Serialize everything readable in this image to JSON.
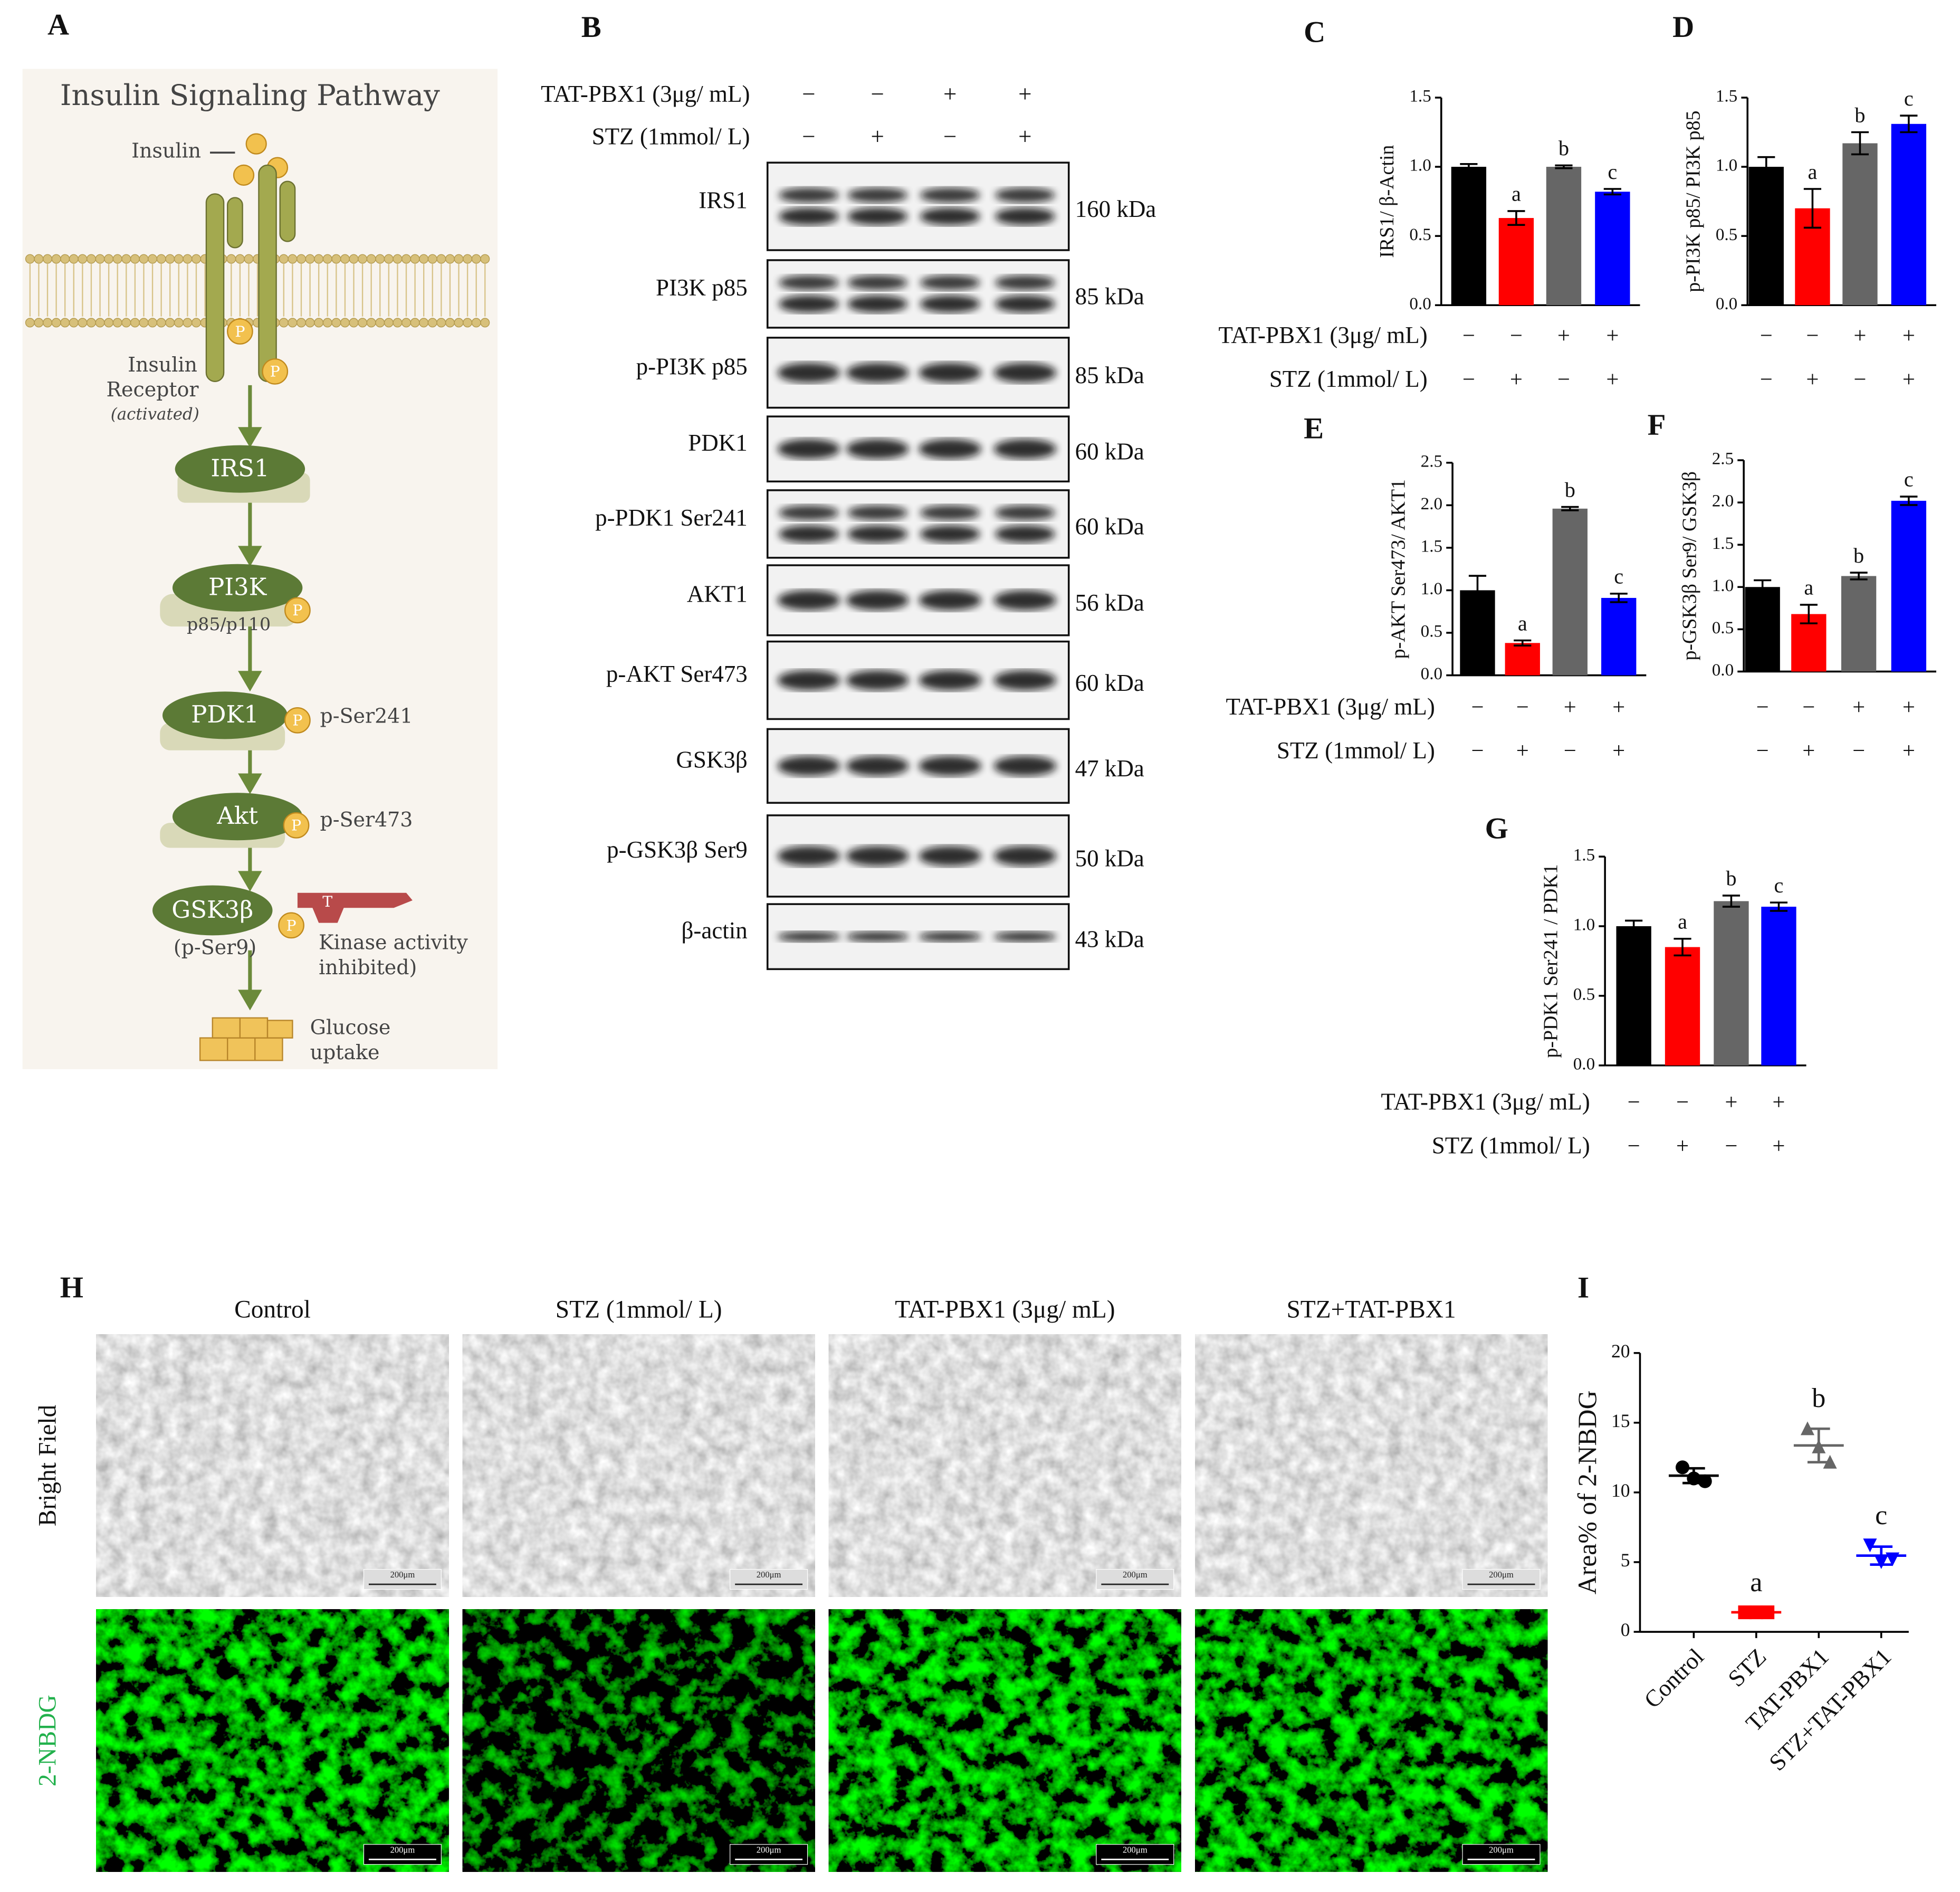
{
  "panel_labels": [
    "A",
    "B",
    "C",
    "D",
    "E",
    "F",
    "G",
    "H",
    "I"
  ],
  "pathway": {
    "title": "Insulin Signaling Pathway",
    "insulin": "Insulin",
    "receptor": "Insulin",
    "receptor2": "Receptor",
    "activated": "(activated)",
    "irs1": "IRS1",
    "pi3k": "PI3K",
    "pi3k_sub": "p85/p110",
    "pdk1": "PDK1",
    "pdk1_site": "p-Ser241",
    "akt": "Akt",
    "akt_site": "p-Ser473",
    "gsk": "GSK3β",
    "gsk_site": "(p-Ser9)",
    "inhib1": "Kinase activity",
    "inhib2": "inhibited)",
    "glucose1": "Glucose",
    "glucose2": "uptake",
    "phospho": "P",
    "t": "T"
  },
  "blot": {
    "conditions": [
      {
        "name": "TAT-PBX1 (3μg/ mL)",
        "signs": [
          "−",
          "−",
          "+",
          "+"
        ]
      },
      {
        "name": "STZ (1mmol/ L)",
        "signs": [
          "−",
          "+",
          "−",
          "+"
        ]
      }
    ],
    "rows": [
      {
        "name": "IRS1",
        "kda": "160 kDa"
      },
      {
        "name": "PI3K p85",
        "kda": "85 kDa"
      },
      {
        "name": "p-PI3K p85",
        "kda": "85 kDa"
      },
      {
        "name": "PDK1",
        "kda": "60 kDa"
      },
      {
        "name": "p-PDK1 Ser241",
        "kda": "60 kDa"
      },
      {
        "name": "AKT1",
        "kda": "56 kDa"
      },
      {
        "name": "p-AKT Ser473",
        "kda": "60 kDa"
      },
      {
        "name": "GSK3β",
        "kda": "47 kDa"
      },
      {
        "name": "p-GSK3β Ser9",
        "kda": "50 kDa"
      },
      {
        "name": "β-actin",
        "kda": "43 kDa"
      }
    ]
  },
  "imaging": {
    "columns": [
      "Control",
      "STZ (1mmol/ L)",
      "TAT-PBX1 (3μg/ mL)",
      "STZ+TAT-PBX1"
    ],
    "rows": [
      "Bright Field",
      "2-NBDG"
    ],
    "row_colors": [
      "#111111",
      "#22b14c"
    ],
    "scale_bar": "200μm"
  },
  "chart_data": [
    {
      "type": "bar",
      "ylabel": "IRS1/ β-Actin",
      "ylim": [
        0,
        1.5
      ],
      "yticks": [
        {
          "value": 0,
          "label": "0.0"
        },
        0.5,
        {
          "value": 1,
          "label": "1.0"
        },
        1.5
      ],
      "values": [
        1.0,
        0.63,
        1.0,
        0.82
      ],
      "errors": [
        0.02,
        0.05,
        0.01,
        0.02
      ],
      "colors": [
        "#000000",
        "#ff0000",
        "#666666",
        "#0000ff"
      ],
      "annotations": [
        null,
        "a",
        "b",
        "c"
      ],
      "conditions": [
        {
          "name": "TAT-PBX1 (3μg/ mL)",
          "signs": [
            "−",
            "−",
            "+",
            "+"
          ]
        },
        {
          "name": "STZ (1mmol/ L)",
          "signs": [
            "−",
            "+",
            "−",
            "+"
          ]
        }
      ]
    },
    {
      "type": "bar",
      "ylabel": "p-PI3K p85/ PI3K p85",
      "ylim": [
        0,
        1.5
      ],
      "yticks": [
        {
          "value": 0,
          "label": "0.0"
        },
        0.5,
        {
          "value": 1,
          "label": "1.0"
        },
        1.5
      ],
      "values": [
        1.0,
        0.7,
        1.17,
        1.31
      ],
      "errors": [
        0.07,
        0.14,
        0.08,
        0.06
      ],
      "colors": [
        "#000000",
        "#ff0000",
        "#666666",
        "#0000ff"
      ],
      "annotations": [
        null,
        "a",
        "b",
        "c"
      ],
      "conditions": [
        {
          "signs": [
            "−",
            "−",
            "+",
            "+"
          ]
        },
        {
          "signs": [
            "−",
            "+",
            "−",
            "+"
          ]
        }
      ]
    },
    {
      "type": "bar",
      "ylabel": "p-AKT Ser473/ AKT1",
      "ylim": [
        0,
        2.5
      ],
      "yticks": [
        {
          "value": 0,
          "label": "0.0"
        },
        0.5,
        {
          "value": 1,
          "label": "1.0"
        },
        1.5,
        {
          "value": 2,
          "label": "2.0"
        },
        2.5
      ],
      "values": [
        1.0,
        0.38,
        1.96,
        0.91
      ],
      "errors": [
        0.17,
        0.03,
        0.02,
        0.05
      ],
      "colors": [
        "#000000",
        "#ff0000",
        "#666666",
        "#0000ff"
      ],
      "annotations": [
        null,
        "a",
        "b",
        "c"
      ],
      "conditions": [
        {
          "name": "TAT-PBX1 (3μg/ mL)",
          "signs": [
            "−",
            "−",
            "+",
            "+"
          ]
        },
        {
          "name": "STZ (1mmol/ L)",
          "signs": [
            "−",
            "+",
            "−",
            "+"
          ]
        }
      ]
    },
    {
      "type": "bar",
      "ylabel": "p-GSK3β Ser9/ GSK3β",
      "ylim": [
        0,
        2.5
      ],
      "yticks": [
        {
          "value": 0,
          "label": "0.0"
        },
        0.5,
        {
          "value": 1,
          "label": "1.0"
        },
        1.5,
        {
          "value": 2,
          "label": "2.0"
        },
        2.5
      ],
      "values": [
        1.0,
        0.68,
        1.13,
        2.02
      ],
      "errors": [
        0.08,
        0.11,
        0.04,
        0.05
      ],
      "colors": [
        "#000000",
        "#ff0000",
        "#666666",
        "#0000ff"
      ],
      "annotations": [
        null,
        "a",
        "b",
        "c"
      ],
      "conditions": [
        {
          "signs": [
            "−",
            "−",
            "+",
            "+"
          ]
        },
        {
          "signs": [
            "−",
            "+",
            "−",
            "+"
          ]
        }
      ]
    },
    {
      "type": "bar",
      "ylabel": "p-PDK1 Ser241 / PDK1",
      "ylim": [
        0,
        1.5
      ],
      "yticks": [
        {
          "value": 0,
          "label": "0.0"
        },
        0.5,
        {
          "value": 1,
          "label": "1.0"
        },
        1.5
      ],
      "values": [
        1.0,
        0.85,
        1.18,
        1.14
      ],
      "errors": [
        0.04,
        0.06,
        0.04,
        0.03
      ],
      "colors": [
        "#000000",
        "#ff0000",
        "#666666",
        "#0000ff"
      ],
      "annotations": [
        null,
        "a",
        "b",
        "c"
      ],
      "conditions": [
        {
          "name": "TAT-PBX1 (3μg/ mL)",
          "signs": [
            "−",
            "−",
            "+",
            "+"
          ]
        },
        {
          "name": "STZ (1mmol/ L)",
          "signs": [
            "−",
            "+",
            "−",
            "+"
          ]
        }
      ]
    },
    {
      "type": "scatter",
      "ylabel": "Area% of 2-NBDG",
      "ylim": [
        0,
        20
      ],
      "yticks": [
        0,
        5,
        10,
        15,
        20
      ],
      "categories": [
        "Control",
        "STZ",
        "TAT-PBX1",
        "STZ+TAT-PBX1"
      ],
      "annotations": [
        null,
        "a",
        "b",
        "c"
      ],
      "groups": [
        {
          "color": "#000000",
          "marker": "circle",
          "values": [
            11.8,
            11.0,
            10.8
          ]
        },
        {
          "color": "#ff0000",
          "marker": "square",
          "values": [
            1.4,
            1.4,
            1.4
          ]
        },
        {
          "color": "#666666",
          "marker": "triangle-up",
          "values": [
            14.6,
            13.3,
            12.2
          ]
        },
        {
          "color": "#0000ff",
          "marker": "triangle-down",
          "values": [
            6.2,
            5.0,
            5.2
          ]
        }
      ]
    }
  ]
}
